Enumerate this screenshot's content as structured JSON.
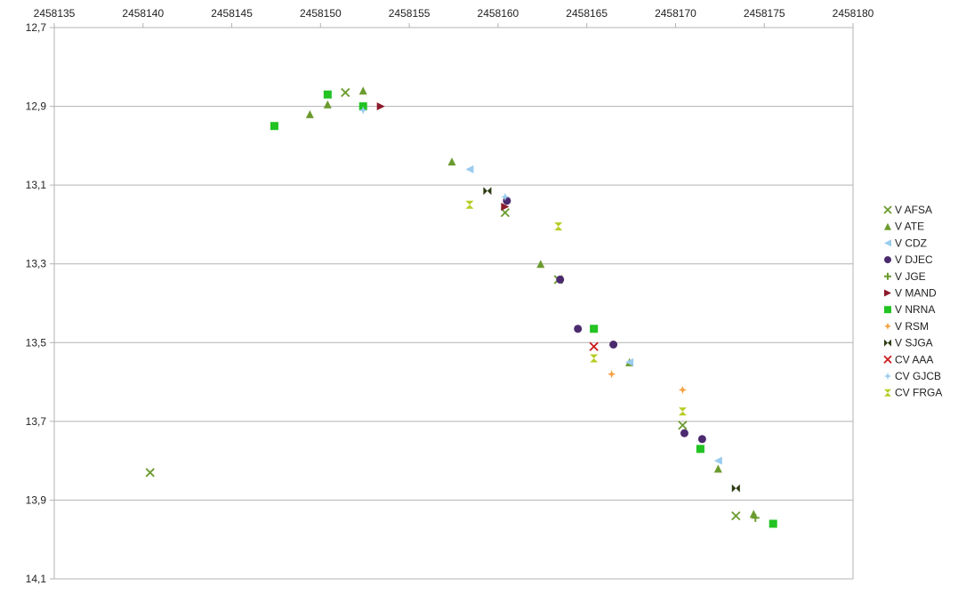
{
  "chart_data": {
    "type": "scatter",
    "title": "",
    "xlabel": "",
    "ylabel": "",
    "xlim": [
      2458135,
      2458180
    ],
    "ylim": [
      12.7,
      14.1
    ],
    "y_reversed": true,
    "grid": "horizontal",
    "legend_position": "right",
    "x_ticks": [
      "2458135",
      "2458140",
      "2458145",
      "2458150",
      "2458155",
      "2458160",
      "2458165",
      "2458170",
      "2458175",
      "2458180"
    ],
    "x_tick_values": [
      2458135,
      2458140,
      2458145,
      2458150,
      2458155,
      2458160,
      2458165,
      2458170,
      2458175,
      2458180
    ],
    "y_ticks": [
      "12,7",
      "12,9",
      "13,1",
      "13,3",
      "13,5",
      "13,7",
      "13,9",
      "14,1"
    ],
    "y_tick_values": [
      12.7,
      12.9,
      13.1,
      13.3,
      13.5,
      13.7,
      13.9,
      14.1
    ],
    "series": [
      {
        "name": "V AFSA",
        "marker": "x",
        "color": "#6b9b2e",
        "points": [
          [
            2458140.4,
            13.83
          ],
          [
            2458151.4,
            12.865
          ],
          [
            2458160.4,
            13.17
          ],
          [
            2458163.4,
            13.34
          ],
          [
            2458170.4,
            13.71
          ],
          [
            2458173.4,
            13.94
          ]
        ]
      },
      {
        "name": "V ATE",
        "marker": "triangle-up",
        "color": "#6b9b2e",
        "points": [
          [
            2458149.4,
            12.92
          ],
          [
            2458150.4,
            12.895
          ],
          [
            2458152.4,
            12.86
          ],
          [
            2458157.4,
            13.04
          ],
          [
            2458162.4,
            13.3
          ],
          [
            2458167.4,
            13.55
          ],
          [
            2458172.4,
            13.82
          ],
          [
            2458174.4,
            13.935
          ]
        ]
      },
      {
        "name": "V CDZ",
        "marker": "triangle-left",
        "color": "#99ccee",
        "points": [
          [
            2458150.4,
            12.87
          ],
          [
            2458158.4,
            13.06
          ],
          [
            2458167.4,
            13.55
          ],
          [
            2458171.4,
            13.77
          ],
          [
            2458172.4,
            13.8
          ]
        ]
      },
      {
        "name": "V DJEC",
        "marker": "circle",
        "color": "#4b2a6e",
        "points": [
          [
            2458160.5,
            13.14
          ],
          [
            2458163.5,
            13.34
          ],
          [
            2458164.5,
            13.465
          ],
          [
            2458166.5,
            13.505
          ],
          [
            2458170.5,
            13.73
          ],
          [
            2458171.5,
            13.745
          ]
        ]
      },
      {
        "name": "V JGE",
        "marker": "plus",
        "color": "#6b9b2e",
        "points": [
          [
            2458174.5,
            13.945
          ]
        ]
      },
      {
        "name": "V MAND",
        "marker": "triangle-right",
        "color": "#8b1a2b",
        "points": [
          [
            2458153.4,
            12.9
          ],
          [
            2458160.4,
            13.155
          ]
        ]
      },
      {
        "name": "V NRNA",
        "marker": "square",
        "color": "#22c322",
        "points": [
          [
            2458147.4,
            12.95
          ],
          [
            2458150.4,
            12.87
          ],
          [
            2458152.4,
            12.9
          ],
          [
            2458165.4,
            13.465
          ],
          [
            2458171.4,
            13.77
          ],
          [
            2458175.5,
            13.96
          ]
        ]
      },
      {
        "name": "V RSM",
        "marker": "star4",
        "color": "#f5a040",
        "points": [
          [
            2458166.4,
            13.58
          ],
          [
            2458170.4,
            13.62
          ]
        ]
      },
      {
        "name": "V SJGA",
        "marker": "bowtie",
        "color": "#2d3a12",
        "points": [
          [
            2458159.4,
            13.115
          ],
          [
            2458173.4,
            13.87
          ]
        ]
      },
      {
        "name": "CV AAA",
        "marker": "x",
        "color": "#cc1a1a",
        "points": [
          [
            2458165.4,
            13.51
          ]
        ]
      },
      {
        "name": "CV GJCB",
        "marker": "star4",
        "color": "#99ccee",
        "points": [
          [
            2458152.4,
            12.91
          ],
          [
            2458160.4,
            13.13
          ]
        ]
      },
      {
        "name": "CV FRGA",
        "marker": "hourglass",
        "color": "#b7cc22",
        "points": [
          [
            2458158.4,
            13.15
          ],
          [
            2458163.4,
            13.205
          ],
          [
            2458165.4,
            13.54
          ],
          [
            2458170.4,
            13.675
          ]
        ]
      }
    ]
  }
}
